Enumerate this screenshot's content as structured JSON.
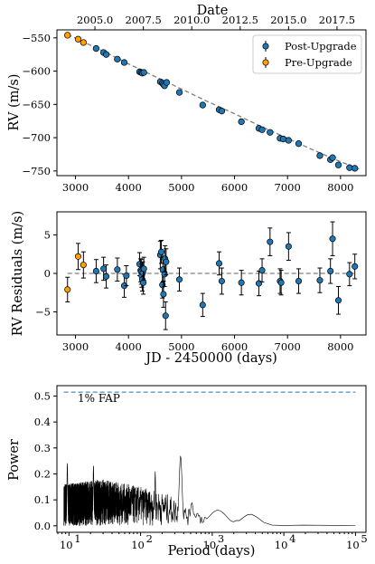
{
  "chart_data": [
    {
      "type": "scatter",
      "panel": "rv",
      "xlabel": "",
      "ylabel": "RV (m/s)",
      "top_axis_label": "Date",
      "top_ticks": [
        "2005.0",
        "2007.5",
        "2010.0",
        "2012.5",
        "2015.0",
        "2017.5"
      ],
      "xlim": [
        2650,
        8480
      ],
      "ylim": [
        -757,
        -538
      ],
      "x_ticks": [
        3000,
        4000,
        5000,
        6000,
        7000,
        8000
      ],
      "y_ticks": [
        -550,
        -600,
        -650,
        -700,
        -750
      ],
      "legend": {
        "placement": "upper right",
        "entries": [
          "Post-Upgrade",
          "Pre-Upgrade"
        ]
      },
      "colors": {
        "post": "#1f77b4",
        "pre": "#ff9f00",
        "fit": "#808080"
      },
      "fit_curve": {
        "style": "dashed",
        "x": [
          2850,
          3500,
          4000,
          4500,
          5000,
          5500,
          6000,
          6500,
          7000,
          7500,
          8000,
          8350
        ],
        "y": [
          -545,
          -569,
          -589,
          -608,
          -627,
          -646,
          -664,
          -683,
          -701,
          -719,
          -736,
          -747
        ]
      },
      "series": [
        {
          "name": "Post-Upgrade",
          "points": [
            [
              3390,
              -566
            ],
            [
              3530,
              -572
            ],
            [
              3580,
              -575
            ],
            [
              3790,
              -582
            ],
            [
              3920,
              -587
            ],
            [
              4210,
              -601
            ],
            [
              4240,
              -602
            ],
            [
              4260,
              -603
            ],
            [
              4290,
              -602
            ],
            [
              4600,
              -616
            ],
            [
              4640,
              -618
            ],
            [
              4660,
              -620
            ],
            [
              4680,
              -622
            ],
            [
              4720,
              -617
            ],
            [
              4960,
              -632
            ],
            [
              5400,
              -651
            ],
            [
              5710,
              -658
            ],
            [
              5760,
              -660
            ],
            [
              6130,
              -676
            ],
            [
              6460,
              -686
            ],
            [
              6520,
              -688
            ],
            [
              6670,
              -692
            ],
            [
              6860,
              -701
            ],
            [
              6920,
              -702
            ],
            [
              7020,
              -704
            ],
            [
              7210,
              -709
            ],
            [
              7610,
              -727
            ],
            [
              7810,
              -733
            ],
            [
              7850,
              -730
            ],
            [
              7960,
              -741
            ],
            [
              8170,
              -745
            ],
            [
              8270,
              -746
            ]
          ]
        },
        {
          "name": "Pre-Upgrade",
          "points": [
            [
              2850,
              -546
            ],
            [
              3050,
              -552
            ],
            [
              3150,
              -557
            ]
          ]
        }
      ]
    },
    {
      "type": "scatter",
      "panel": "residuals",
      "xlabel": "JD - 2450000 (days)",
      "ylabel": "RV Residuals (m/s)",
      "xlim": [
        2650,
        8480
      ],
      "ylim": [
        -8,
        8
      ],
      "x_ticks": [
        3000,
        4000,
        5000,
        6000,
        7000,
        8000
      ],
      "y_ticks": [
        5,
        0,
        -5
      ],
      "zero_line": {
        "style": "dashed"
      },
      "series": [
        {
          "name": "Post-Upgrade",
          "points": [
            [
              3390,
              0.3,
              1.5
            ],
            [
              3530,
              0.6,
              1.5
            ],
            [
              3580,
              -0.4,
              1.5
            ],
            [
              3790,
              0.5,
              1.5
            ],
            [
              3920,
              -1.6,
              1.5
            ],
            [
              3960,
              -0.3,
              1.3
            ],
            [
              4210,
              1.2,
              1.5
            ],
            [
              4230,
              0.4,
              1.5
            ],
            [
              4240,
              0.2,
              1.6
            ],
            [
              4250,
              -0.3,
              1.5
            ],
            [
              4260,
              -0.8,
              1.5
            ],
            [
              4270,
              0.1,
              1.4
            ],
            [
              4280,
              -1.2,
              1.5
            ],
            [
              4290,
              0.6,
              1.5
            ],
            [
              4600,
              2.4,
              1.8
            ],
            [
              4620,
              2.8,
              1.5
            ],
            [
              4640,
              -1.5,
              1.7
            ],
            [
              4650,
              0.5,
              1.6
            ],
            [
              4660,
              -2.7,
              1.7
            ],
            [
              4680,
              -0.1,
              1.6
            ],
            [
              4690,
              1.9,
              1.7
            ],
            [
              4700,
              -5.5,
              1.8
            ],
            [
              4710,
              1.5,
              1.7
            ],
            [
              4960,
              -0.8,
              1.5
            ],
            [
              5400,
              -4.1,
              1.5
            ],
            [
              5710,
              1.3,
              1.5
            ],
            [
              5760,
              -1.0,
              1.7
            ],
            [
              6130,
              -1.2,
              1.6
            ],
            [
              6460,
              -1.3,
              1.6
            ],
            [
              6520,
              0.4,
              1.5
            ],
            [
              6670,
              4.1,
              1.8
            ],
            [
              6860,
              -1.0,
              1.6
            ],
            [
              6880,
              -1.2,
              1.6
            ],
            [
              7020,
              3.5,
              1.8
            ],
            [
              7210,
              -1.0,
              1.6
            ],
            [
              7610,
              -0.9,
              1.6
            ],
            [
              7810,
              0.3,
              1.6
            ],
            [
              7850,
              4.5,
              2.2
            ],
            [
              7960,
              -3.5,
              1.8
            ],
            [
              8170,
              -0.1,
              1.5
            ],
            [
              8270,
              0.9,
              1.6
            ]
          ]
        },
        {
          "name": "Pre-Upgrade",
          "points": [
            [
              2850,
              -2.1,
              1.6
            ],
            [
              3050,
              2.2,
              1.7
            ],
            [
              3150,
              1.1,
              1.7
            ]
          ]
        }
      ]
    },
    {
      "type": "line",
      "panel": "periodogram",
      "xlabel": "Period (days)",
      "ylabel": "Power",
      "x_scale": "log",
      "xlim": [
        6.8,
        140000
      ],
      "ylim": [
        -0.025,
        0.54
      ],
      "x_ticks": [
        "10^1",
        "10^2",
        "10^3",
        "10^4",
        "10^5"
      ],
      "y_ticks": [
        "0.0",
        "0.1",
        "0.2",
        "0.3",
        "0.4",
        "0.5"
      ],
      "fap": {
        "label": "1% FAP",
        "level": 0.515,
        "style": "dashed",
        "color": "#1f77b4"
      },
      "period_range": [
        8.5,
        100000
      ],
      "peaks": [
        {
          "period": 9.5,
          "power": 0.24
        },
        {
          "period": 22,
          "power": 0.23
        },
        {
          "period": 160,
          "power": 0.21
        },
        {
          "period": 362,
          "power": 0.27
        },
        {
          "period": 520,
          "power": 0.09
        },
        {
          "period": 620,
          "power": 0.05
        },
        {
          "period": 1200,
          "power": 0.06
        },
        {
          "period": 3400,
          "power": 0.045
        }
      ],
      "noise_envelope": [
        {
          "period": 8.5,
          "power": 0.16
        },
        {
          "period": 30,
          "power": 0.18
        },
        {
          "period": 100,
          "power": 0.15
        },
        {
          "period": 250,
          "power": 0.12
        },
        {
          "period": 500,
          "power": 0.06
        },
        {
          "period": 1000,
          "power": 0.04
        },
        {
          "period": 10000,
          "power": 0.005
        },
        {
          "period": 100000,
          "power": 0.002
        }
      ]
    }
  ]
}
